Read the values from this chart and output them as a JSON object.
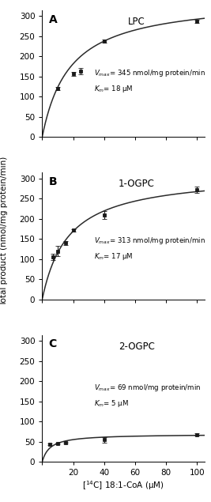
{
  "panels": [
    {
      "label": "A",
      "title": "LPC",
      "Vmax": 345,
      "Km": 18,
      "annotation_line1": "$V_{max}$= 345 nmol/mg protein/min",
      "annotation_line2": "$K_m$= 18 μM",
      "x_data": [
        10,
        20,
        25,
        40,
        100
      ],
      "y_data": [
        120,
        157,
        163,
        237,
        287
      ],
      "y_err": [
        4,
        5,
        8,
        4,
        4
      ],
      "ylim": [
        0,
        315
      ],
      "yticks": [
        0,
        50,
        100,
        150,
        200,
        250,
        300
      ],
      "ann_x": 0.32,
      "ann_y": 0.34
    },
    {
      "label": "B",
      "title": "1-OGPC",
      "Vmax": 313,
      "Km": 17,
      "annotation_line1": "$V_{max}$= 313 nmol/mg protein/min",
      "annotation_line2": "$K_m$= 17 μM",
      "x_data": [
        7,
        10,
        15,
        20,
        40,
        100
      ],
      "y_data": [
        105,
        120,
        140,
        172,
        210,
        273
      ],
      "y_err": [
        8,
        12,
        5,
        3,
        10,
        8
      ],
      "ylim": [
        0,
        315
      ],
      "yticks": [
        0,
        50,
        100,
        150,
        200,
        250,
        300
      ],
      "ann_x": 0.32,
      "ann_y": 0.3
    },
    {
      "label": "C",
      "title": "2-OGPC",
      "Vmax": 69,
      "Km": 5,
      "annotation_line1": "$V_{max}$= 69 nmol/mg protein/min",
      "annotation_line2": "$K_m$= 5 μM",
      "x_data": [
        5,
        10,
        15,
        40,
        100
      ],
      "y_data": [
        44,
        46,
        48,
        55,
        68
      ],
      "y_err": [
        2,
        2,
        2,
        7,
        3
      ],
      "ylim": [
        0,
        315
      ],
      "yticks": [
        0,
        50,
        100,
        150,
        200,
        250,
        300
      ],
      "ann_x": 0.32,
      "ann_y": 0.42
    }
  ],
  "xlabel": "[$^{14}$C] 18:1-CoA (μM)",
  "ylabel": "Total product (nmol/mg protein/min)",
  "xlim": [
    0,
    105
  ],
  "xticks": [
    0,
    20,
    40,
    60,
    80,
    100
  ],
  "xticklabels": [
    "",
    "20",
    "40",
    "60",
    "80",
    "100"
  ],
  "background_color": "#ffffff",
  "line_color": "#2a2a2a",
  "marker_color": "#1a1a1a"
}
